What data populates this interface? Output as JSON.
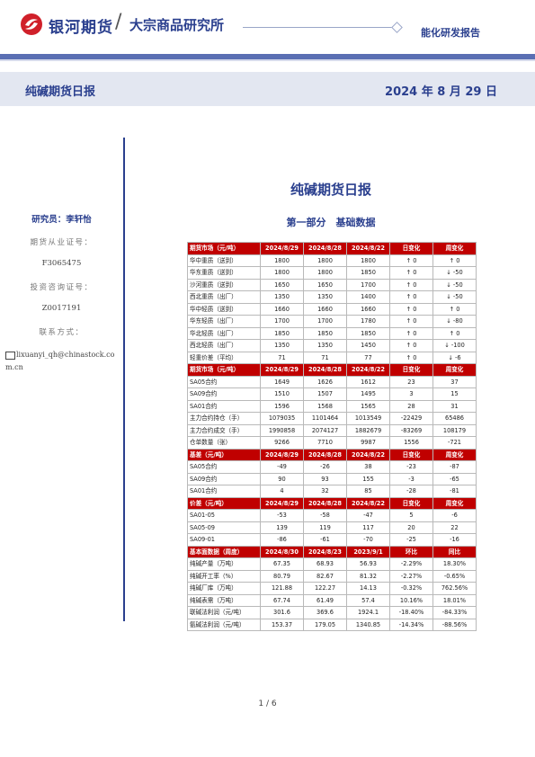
{
  "header": {
    "logo_text": "银河期货",
    "separator": "/",
    "institute": "大宗商品研究所",
    "report_type": "能化研发报告"
  },
  "title_bar": {
    "left": "纯碱期货日报",
    "right": "2024 年 8 月 29 日"
  },
  "sidebar": {
    "analyst": "研究员：李轩怡",
    "license_label": "期货从业证号：",
    "license_value": "F3065475",
    "consult_label": "投资咨询证号：",
    "consult_value": "Z0017191",
    "contact_label": "联系方式：",
    "email": "lixuanyi_qh@chinastock.com.cn"
  },
  "main": {
    "title": "纯碱期货日报",
    "section": "第一部分　基础数据"
  },
  "tables": [
    {
      "header": [
        "期货市场（元/吨）",
        "2024/8/29",
        "2024/8/28",
        "2024/8/22",
        "日变化",
        "周变化"
      ],
      "rows": [
        [
          "华中重质（送到）",
          "1800",
          "1800",
          "1800",
          "↑ 0",
          "↑ 0"
        ],
        [
          "华东重质（送到）",
          "1800",
          "1800",
          "1850",
          "↑ 0",
          "↓ -50"
        ],
        [
          "沙河重质（送到）",
          "1650",
          "1650",
          "1700",
          "↑ 0",
          "↓ -50"
        ],
        [
          "西北重质（出厂）",
          "1350",
          "1350",
          "1400",
          "↑ 0",
          "↓ -50"
        ],
        [
          "华中轻质（送到）",
          "1660",
          "1660",
          "1660",
          "↑ 0",
          "↑ 0"
        ],
        [
          "华东轻质（出厂）",
          "1700",
          "1700",
          "1780",
          "↑ 0",
          "↓ -80"
        ],
        [
          "华北轻质（出厂）",
          "1850",
          "1850",
          "1850",
          "↑ 0",
          "↑ 0"
        ],
        [
          "西北轻质（出厂）",
          "1350",
          "1350",
          "1450",
          "↑ 0",
          "↓ -100"
        ],
        [
          "轻重价差（平均）",
          "71",
          "71",
          "77",
          "↑ 0",
          "↓ -6"
        ]
      ]
    },
    {
      "header": [
        "期货市场（元/吨）",
        "2024/8/29",
        "2024/8/28",
        "2024/8/22",
        "日变化",
        "周变化"
      ],
      "rows": [
        [
          "SA05合约",
          "1649",
          "1626",
          "1612",
          "23",
          "37"
        ],
        [
          "SA09合约",
          "1510",
          "1507",
          "1495",
          "3",
          "15"
        ],
        [
          "SA01合约",
          "1596",
          "1568",
          "1565",
          "28",
          "31"
        ],
        [
          "主力合约持仓（手）",
          "1079035",
          "1101464",
          "1013549",
          "-22429",
          "65486"
        ],
        [
          "主力合约成交（手）",
          "1990858",
          "2074127",
          "1882679",
          "-83269",
          "108179"
        ],
        [
          "仓单数量（张）",
          "9266",
          "7710",
          "9987",
          "1556",
          "-721"
        ]
      ]
    },
    {
      "header": [
        "基差（元/吨）",
        "2024/8/29",
        "2024/8/28",
        "2024/8/22",
        "日变化",
        "周变化"
      ],
      "rows": [
        [
          "SA05合约",
          "-49",
          "-26",
          "38",
          "-23",
          "-87"
        ],
        [
          "SA09合约",
          "90",
          "93",
          "155",
          "-3",
          "-65"
        ],
        [
          "SA01合约",
          "4",
          "32",
          "85",
          "-28",
          "-81"
        ]
      ]
    },
    {
      "header": [
        "价差（元/吨）",
        "2024/8/29",
        "2024/8/28",
        "2024/8/22",
        "日变化",
        "周变化"
      ],
      "rows": [
        [
          "SA01-05",
          "-53",
          "-58",
          "-47",
          "5",
          "-6"
        ],
        [
          "SA05-09",
          "139",
          "119",
          "117",
          "20",
          "22"
        ],
        [
          "SA09-01",
          "-86",
          "-61",
          "-70",
          "-25",
          "-16"
        ]
      ]
    },
    {
      "header": [
        "基本面数据（周度）",
        "2024/8/30",
        "2024/8/23",
        "2023/9/1",
        "环比",
        "同比"
      ],
      "rows": [
        [
          "纯碱产量（万吨）",
          "67.35",
          "68.93",
          "56.93",
          "-2.29%",
          "18.30%"
        ],
        [
          "纯碱开工率（%）",
          "80.79",
          "82.67",
          "81.32",
          "-2.27%",
          "-0.65%"
        ],
        [
          "纯碱厂库（万吨）",
          "121.88",
          "122.27",
          "14.13",
          "-0.32%",
          "762.56%"
        ],
        [
          "纯碱表需（万吨）",
          "67.74",
          "61.49",
          "57.4",
          "10.16%",
          "18.01%"
        ],
        [
          "联碱法利润（元/吨）",
          "301.6",
          "369.6",
          "1924.1",
          "-18.40%",
          "-84.33%"
        ],
        [
          "氨碱法利润（元/吨）",
          "153.37",
          "179.05",
          "1340.85",
          "-14.34%",
          "-88.56%"
        ]
      ]
    }
  ],
  "page_number": "1 / 6",
  "colors": {
    "brand": "#2a3f8e",
    "header_row": "#c00000",
    "title_band": "#e3e7f1",
    "logo_red": "#d0202a"
  },
  "icons": [
    "galaxy-logo-icon",
    "mail-icon"
  ]
}
